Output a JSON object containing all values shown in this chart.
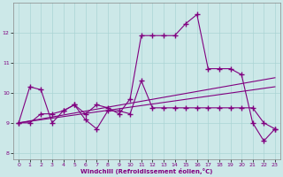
{
  "xlabel": "Windchill (Refroidissement éolien,°C)",
  "x": [
    0,
    1,
    2,
    3,
    4,
    5,
    6,
    7,
    8,
    9,
    10,
    11,
    12,
    13,
    14,
    15,
    16,
    17,
    18,
    19,
    20,
    21,
    22,
    23
  ],
  "line1": [
    9.0,
    10.2,
    10.1,
    9.0,
    9.4,
    9.6,
    9.3,
    9.6,
    9.5,
    9.3,
    9.8,
    11.9,
    11.9,
    11.9,
    11.9,
    12.3,
    12.6,
    10.8,
    10.8,
    10.8,
    10.6,
    9.0,
    8.4,
    8.8
  ],
  "line2": [
    9.0,
    9.0,
    9.3,
    9.3,
    9.4,
    9.6,
    9.1,
    8.8,
    9.4,
    9.4,
    9.3,
    10.4,
    9.5,
    9.5,
    9.5,
    9.5,
    9.5,
    9.5,
    9.5,
    9.5,
    9.5,
    9.5,
    9.0,
    8.8
  ],
  "line3_x": [
    0,
    23
  ],
  "line3_y": [
    9.0,
    10.5
  ],
  "line4_x": [
    0,
    23
  ],
  "line4_y": [
    9.0,
    10.2
  ],
  "color": "#800080",
  "bg_color": "#cce8e8",
  "grid_color": "#aad4d4",
  "ylim": [
    7.8,
    13.0
  ],
  "yticks": [
    8,
    9,
    10,
    11,
    12
  ],
  "xticks": [
    0,
    1,
    2,
    3,
    4,
    5,
    6,
    7,
    8,
    9,
    10,
    11,
    12,
    13,
    14,
    15,
    16,
    17,
    18,
    19,
    20,
    21,
    22,
    23
  ]
}
